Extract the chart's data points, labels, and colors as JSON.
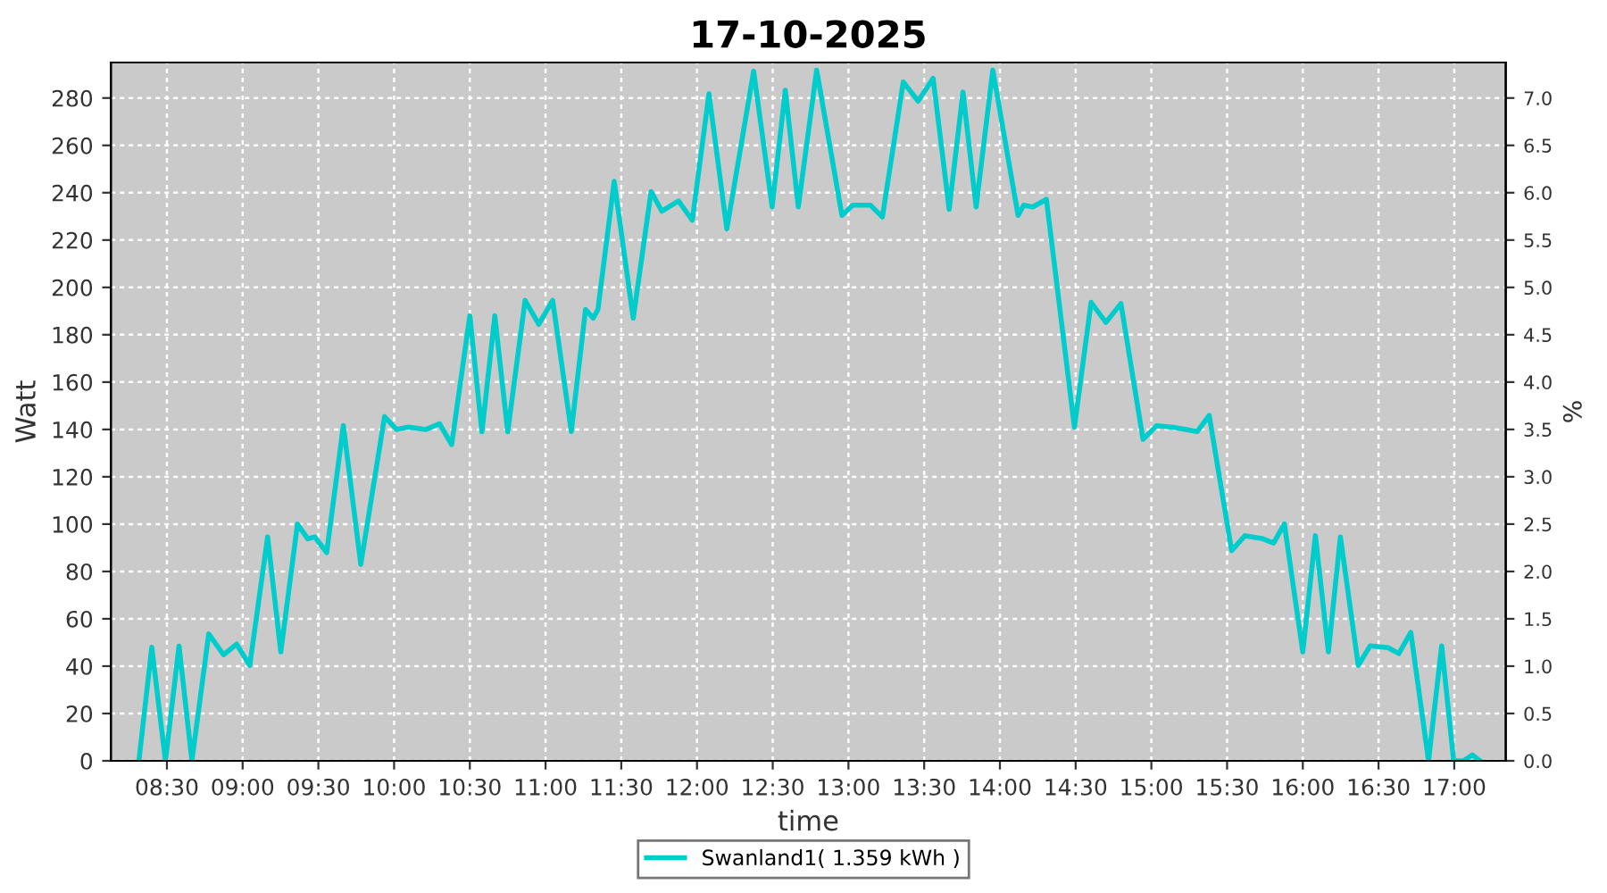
{
  "chart_data": {
    "type": "line",
    "title": "17-10-2025",
    "xlabel": "time",
    "ylabel": "Watt",
    "y2label": "%",
    "x": [
      8.315,
      8.4,
      8.49,
      8.58,
      8.665,
      8.776,
      8.874,
      8.96,
      9.047,
      9.165,
      9.252,
      9.362,
      9.43,
      9.476,
      9.555,
      9.665,
      9.78,
      9.937,
      10.016,
      10.095,
      10.21,
      10.3,
      10.38,
      10.5,
      10.58,
      10.665,
      10.75,
      10.865,
      10.955,
      11.047,
      11.17,
      11.264,
      11.315,
      11.346,
      11.453,
      11.579,
      11.697,
      11.768,
      11.878,
      11.969,
      12.079,
      12.197,
      12.374,
      12.496,
      12.583,
      12.669,
      12.79,
      12.957,
      13.028,
      13.146,
      13.224,
      13.362,
      13.46,
      13.559,
      13.665,
      13.756,
      13.843,
      13.953,
      14.12,
      14.157,
      14.217,
      14.307,
      14.492,
      14.602,
      14.7,
      14.799,
      14.945,
      15.035,
      15.146,
      15.303,
      15.382,
      15.53,
      15.618,
      15.736,
      15.807,
      15.878,
      16.0,
      16.083,
      16.169,
      16.248,
      16.366,
      16.445,
      16.563,
      16.634,
      16.713,
      16.83,
      16.917,
      16.996,
      17.06,
      17.12,
      17.17
    ],
    "series": [
      {
        "name": "Swanland1( 1.359 kWh )",
        "color": "#00cccc",
        "values": [
          0,
          48,
          0,
          48.5,
          0,
          53.6,
          44.8,
          49.3,
          40.3,
          94.6,
          46,
          100,
          93.8,
          94.6,
          88,
          141.6,
          83,
          145.4,
          140,
          141,
          140,
          142.4,
          133.6,
          188,
          139,
          188,
          139,
          194.5,
          184.4,
          194.5,
          139.1,
          190.7,
          187,
          190.7,
          244.8,
          187,
          240.5,
          232.2,
          236.5,
          228.4,
          281.8,
          224.7,
          291.3,
          234,
          283.3,
          234,
          291.8,
          230.4,
          234.7,
          234.7,
          229.7,
          286.8,
          278.7,
          288.3,
          233,
          282.5,
          234,
          291.8,
          230.4,
          234.7,
          234,
          237.2,
          140.9,
          193.7,
          185.2,
          193.2,
          135.8,
          141.6,
          140.9,
          139.1,
          145.9,
          88.8,
          95.1,
          93.8,
          92,
          100.1,
          46,
          95.1,
          46,
          94.6,
          40.3,
          48.6,
          47.8,
          45.3,
          54.3,
          0,
          48.6,
          0,
          0,
          2.5,
          0
        ]
      }
    ],
    "xlim": [
      8.13,
      17.34
    ],
    "ylim": [
      0,
      295
    ],
    "y2lim": [
      0,
      7.375
    ],
    "xticks": [
      {
        "value": 8.5,
        "label": "08:30"
      },
      {
        "value": 9,
        "label": "09:00"
      },
      {
        "value": 9.5,
        "label": "09:30"
      },
      {
        "value": 10,
        "label": "10:00"
      },
      {
        "value": 10.5,
        "label": "10:30"
      },
      {
        "value": 11,
        "label": "11:00"
      },
      {
        "value": 11.5,
        "label": "11:30"
      },
      {
        "value": 12,
        "label": "12:00"
      },
      {
        "value": 12.5,
        "label": "12:30"
      },
      {
        "value": 13,
        "label": "13:00"
      },
      {
        "value": 13.5,
        "label": "13:30"
      },
      {
        "value": 14,
        "label": "14:00"
      },
      {
        "value": 14.5,
        "label": "14:30"
      },
      {
        "value": 15,
        "label": "15:00"
      },
      {
        "value": 15.5,
        "label": "15:30"
      },
      {
        "value": 16,
        "label": "16:00"
      },
      {
        "value": 16.5,
        "label": "16:30"
      },
      {
        "value": 17,
        "label": "17:00"
      }
    ],
    "yticks": [
      0,
      20,
      40,
      60,
      80,
      100,
      120,
      140,
      160,
      180,
      200,
      220,
      240,
      260,
      280
    ],
    "y2ticks": [
      {
        "value": 0,
        "label": "0.0"
      },
      {
        "value": 0.5,
        "label": "0.5"
      },
      {
        "value": 1,
        "label": "1.0"
      },
      {
        "value": 1.5,
        "label": "1.5"
      },
      {
        "value": 2,
        "label": "2.0"
      },
      {
        "value": 2.5,
        "label": "2.5"
      },
      {
        "value": 3,
        "label": "3.0"
      },
      {
        "value": 3.5,
        "label": "3.5"
      },
      {
        "value": 4,
        "label": "4.0"
      },
      {
        "value": 4.5,
        "label": "4.5"
      },
      {
        "value": 5,
        "label": "5.0"
      },
      {
        "value": 5.5,
        "label": "5.5"
      },
      {
        "value": 6,
        "label": "6.0"
      },
      {
        "value": 6.5,
        "label": "6.5"
      },
      {
        "value": 7,
        "label": "7.0"
      }
    ],
    "grid": true,
    "legend": "bottom",
    "marker": "none",
    "line_style": "solid"
  }
}
